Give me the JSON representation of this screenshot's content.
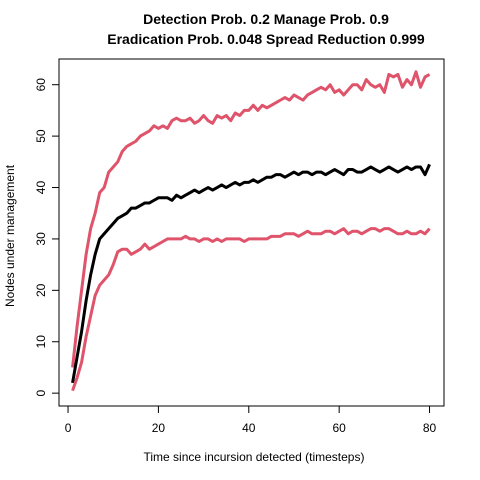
{
  "chart_data": {
    "type": "line",
    "title_lines": [
      "Detection Prob. 0.2 Manage Prob. 0.9",
      "Eradication Prob. 0.048 Spread Reduction 0.999"
    ],
    "xlabel": "Time since incursion detected (timesteps)",
    "ylabel": "Nodes under management",
    "xlim": [
      -2,
      83.2
    ],
    "ylim": [
      -2.5,
      65
    ],
    "x_ticks": [
      0,
      20,
      40,
      60,
      80
    ],
    "y_ticks": [
      0,
      10,
      20,
      30,
      40,
      50,
      60
    ],
    "grid": false,
    "x": [
      1,
      2,
      3,
      4,
      5,
      6,
      7,
      8,
      9,
      10,
      11,
      12,
      13,
      14,
      15,
      16,
      17,
      18,
      19,
      20,
      21,
      22,
      23,
      24,
      25,
      26,
      27,
      28,
      29,
      30,
      31,
      32,
      33,
      34,
      35,
      36,
      37,
      38,
      39,
      40,
      41,
      42,
      43,
      44,
      45,
      46,
      47,
      48,
      49,
      50,
      51,
      52,
      53,
      54,
      55,
      56,
      57,
      58,
      59,
      60,
      61,
      62,
      63,
      64,
      65,
      66,
      67,
      68,
      69,
      70,
      71,
      72,
      73,
      74,
      75,
      76,
      77,
      78,
      79,
      80
    ],
    "series": [
      {
        "color": "#DF536B",
        "values": [
          5,
          13,
          20,
          27,
          32,
          35,
          39,
          40,
          43,
          44,
          45,
          47,
          48,
          48.5,
          49,
          50,
          50.5,
          51,
          52,
          51.5,
          52,
          51.5,
          53,
          53.5,
          53,
          53,
          53.5,
          52.5,
          53,
          54,
          53,
          52.5,
          54,
          53.5,
          54,
          53,
          54.5,
          54,
          55,
          55,
          56,
          55,
          56,
          55.5,
          56,
          56.5,
          57,
          57.5,
          57,
          58,
          57.5,
          57,
          58,
          58.5,
          59,
          59.5,
          59,
          60,
          58.5,
          59,
          58,
          59,
          60,
          60,
          59,
          61,
          60,
          59.5,
          60,
          58.5,
          62,
          61.5,
          62,
          59.5,
          61,
          60,
          62.5,
          59.5,
          61.5,
          62
        ]
      },
      {
        "color": "#000000",
        "values": [
          2,
          7,
          12,
          18,
          23,
          27,
          30,
          31,
          32,
          33,
          34,
          34.5,
          35,
          36,
          36,
          36.5,
          37,
          37,
          37.5,
          38,
          38,
          38,
          37.5,
          38.5,
          38,
          38.5,
          39,
          39.5,
          39,
          39.5,
          40,
          39.5,
          40,
          40.5,
          40,
          40.5,
          41,
          40.5,
          41,
          41,
          41.5,
          41,
          41.5,
          42,
          42,
          42.5,
          42.5,
          42,
          42.5,
          43,
          42.5,
          43,
          43,
          42.5,
          43,
          43,
          42.5,
          43,
          43.5,
          43,
          42.5,
          43.5,
          43.5,
          43,
          43,
          43.5,
          44,
          43.5,
          43,
          43.5,
          44,
          43.5,
          43,
          43.5,
          44,
          43.5,
          44,
          44,
          42.5,
          44.5
        ]
      },
      {
        "color": "#DF536B",
        "values": [
          0.5,
          3,
          6,
          11,
          15,
          19,
          21,
          22,
          23,
          25,
          27.5,
          28,
          28,
          27,
          27.5,
          28,
          29,
          28,
          28.5,
          29,
          29.5,
          30,
          30,
          30,
          30,
          30.5,
          30,
          30,
          29.5,
          30,
          30,
          29.5,
          30,
          29.5,
          30,
          30,
          30,
          30,
          29.5,
          30,
          30,
          30,
          30,
          30,
          30.5,
          30.5,
          30.5,
          31,
          31,
          31,
          30.5,
          31,
          31.5,
          31,
          31,
          31,
          31.5,
          31.5,
          31,
          31.5,
          32,
          31,
          31.5,
          31.5,
          31,
          31.5,
          32,
          32,
          31.5,
          32,
          32,
          31.5,
          31,
          31,
          31.5,
          31,
          31,
          31.5,
          31,
          32
        ]
      }
    ]
  }
}
